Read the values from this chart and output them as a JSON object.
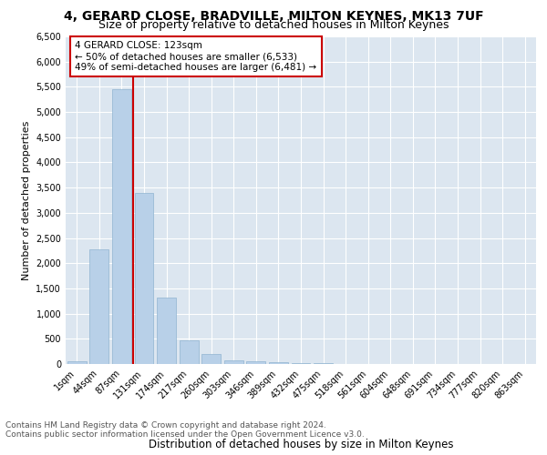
{
  "title": "4, GERARD CLOSE, BRADVILLE, MILTON KEYNES, MK13 7UF",
  "subtitle": "Size of property relative to detached houses in Milton Keynes",
  "xlabel": "Distribution of detached houses by size in Milton Keynes",
  "ylabel": "Number of detached properties",
  "bins": [
    "1sqm",
    "44sqm",
    "87sqm",
    "131sqm",
    "174sqm",
    "217sqm",
    "260sqm",
    "303sqm",
    "346sqm",
    "389sqm",
    "432sqm",
    "475sqm",
    "518sqm",
    "561sqm",
    "604sqm",
    "648sqm",
    "691sqm",
    "734sqm",
    "777sqm",
    "820sqm",
    "863sqm"
  ],
  "values": [
    60,
    2280,
    5450,
    3390,
    1310,
    470,
    205,
    80,
    50,
    30,
    15,
    10,
    5,
    3,
    2,
    2,
    1,
    1,
    1,
    1,
    0
  ],
  "bar_color": "#b8d0e8",
  "bar_edge_color": "#90b4d0",
  "vline_color": "#cc0000",
  "annotation_text": "4 GERARD CLOSE: 123sqm\n← 50% of detached houses are smaller (6,533)\n49% of semi-detached houses are larger (6,481) →",
  "annotation_box_facecolor": "white",
  "annotation_box_edge": "#cc0000",
  "ylim": [
    0,
    6500
  ],
  "yticks": [
    0,
    500,
    1000,
    1500,
    2000,
    2500,
    3000,
    3500,
    4000,
    4500,
    5000,
    5500,
    6000,
    6500
  ],
  "plot_bg_color": "#dce6f0",
  "grid_color": "white",
  "footer_line1": "Contains HM Land Registry data © Crown copyright and database right 2024.",
  "footer_line2": "Contains public sector information licensed under the Open Government Licence v3.0.",
  "title_fontsize": 10,
  "subtitle_fontsize": 9,
  "xlabel_fontsize": 8.5,
  "ylabel_fontsize": 8,
  "tick_fontsize": 7,
  "annotation_fontsize": 7.5,
  "footer_fontsize": 6.5
}
